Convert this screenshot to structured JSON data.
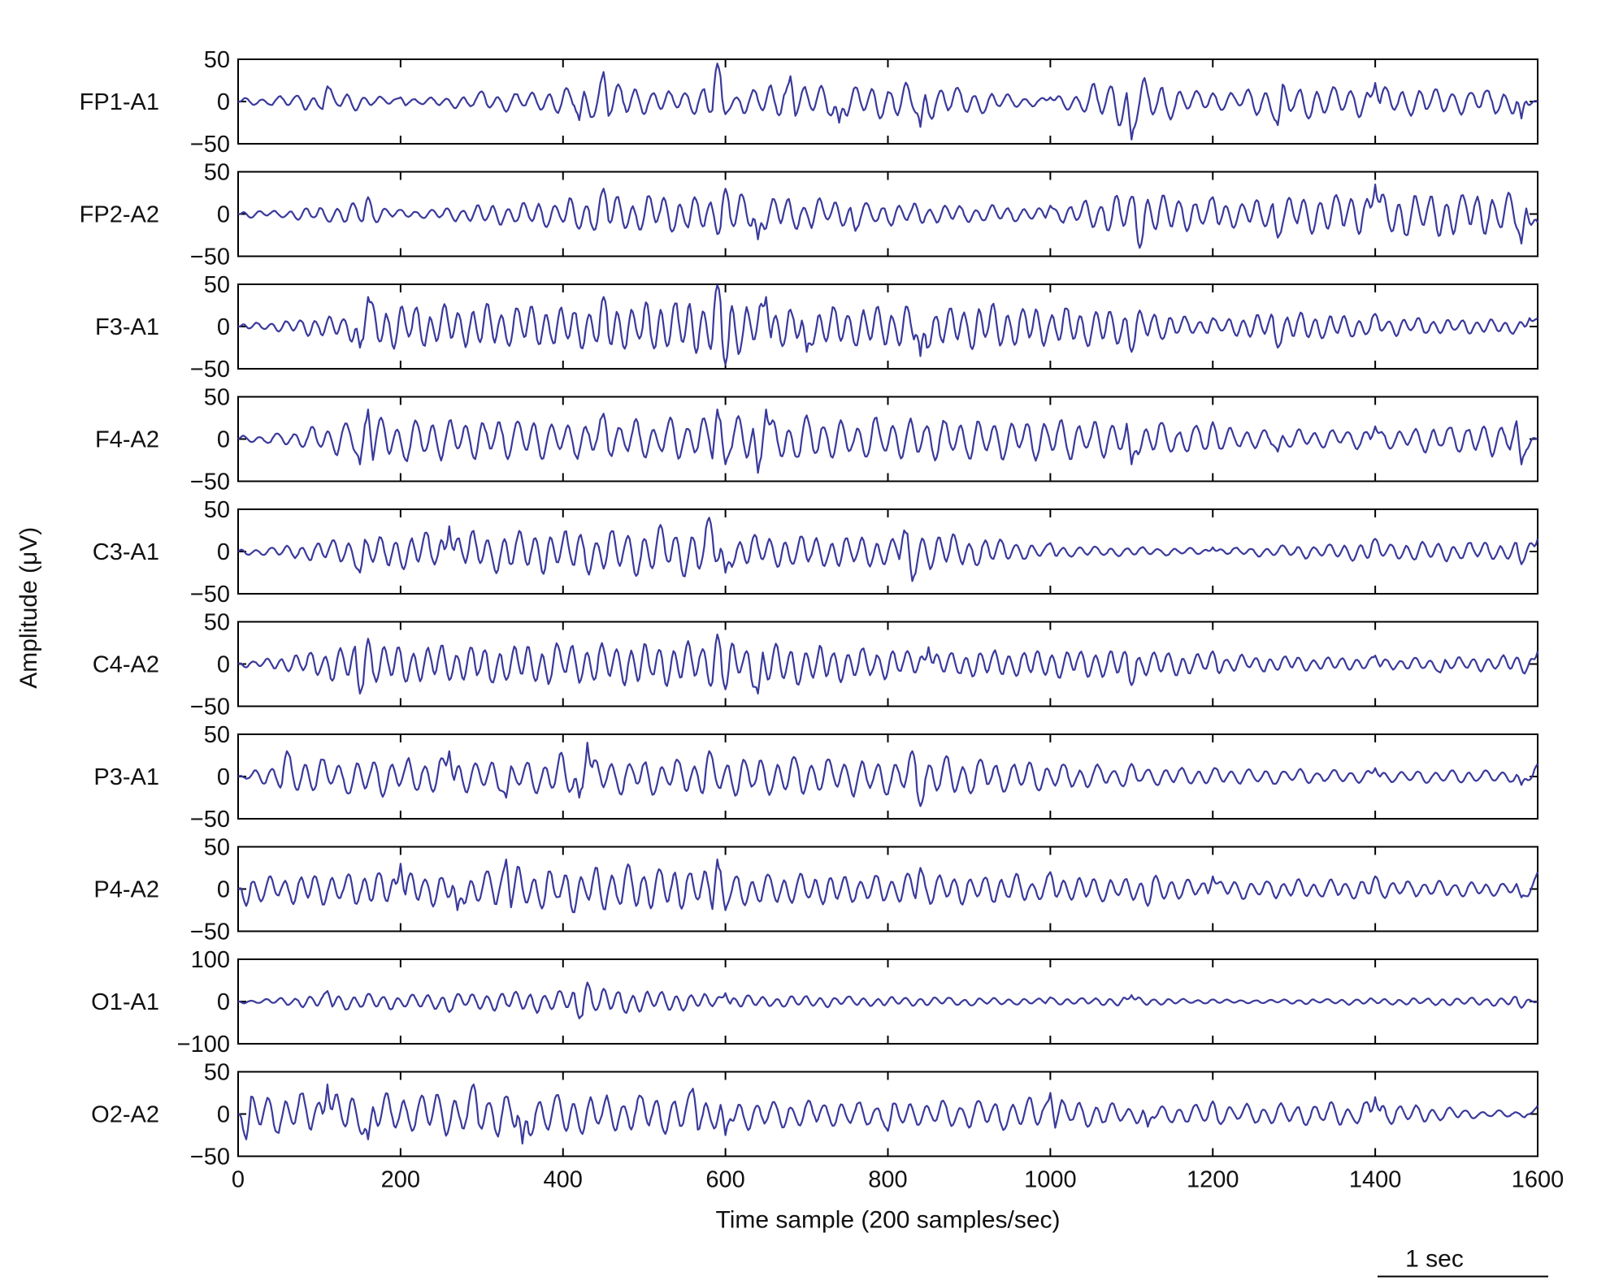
{
  "chart_data": {
    "type": "line",
    "xlabel": "Time sample (200 samples/sec)",
    "ylabel": "Amplitude (μV)",
    "xlim": [
      0,
      1600
    ],
    "x_ticks": [
      0,
      200,
      400,
      600,
      800,
      1000,
      1200,
      1400,
      1600
    ],
    "x_tick_labels": [
      "0",
      "200",
      "400",
      "600",
      "800",
      "1000",
      "1200",
      "1400",
      "1600"
    ],
    "scale_bar_label": "1 sec",
    "grid": false,
    "line_color": "#3a3a9c",
    "channels": [
      {
        "name": "FP1-A1",
        "ylim": [
          -50,
          50
        ],
        "ytick_labels": [
          "50",
          "0",
          "−50"
        ],
        "approx_features": [
          [
            0,
            0
          ],
          [
            110,
            18
          ],
          [
            200,
            5
          ],
          [
            300,
            12
          ],
          [
            420,
            -22
          ],
          [
            450,
            35
          ],
          [
            550,
            10
          ],
          [
            590,
            45
          ],
          [
            600,
            -15
          ],
          [
            680,
            30
          ],
          [
            740,
            -25
          ],
          [
            840,
            -30
          ],
          [
            1000,
            5
          ],
          [
            1100,
            -45
          ],
          [
            1200,
            10
          ],
          [
            1280,
            -28
          ],
          [
            1400,
            22
          ],
          [
            1580,
            -20
          ],
          [
            1600,
            0
          ]
        ]
      },
      {
        "name": "FP2-A2",
        "ylim": [
          -50,
          50
        ],
        "ytick_labels": [
          "50",
          "0",
          "−50"
        ],
        "approx_features": [
          [
            0,
            0
          ],
          [
            160,
            20
          ],
          [
            200,
            5
          ],
          [
            450,
            30
          ],
          [
            600,
            30
          ],
          [
            640,
            -30
          ],
          [
            760,
            -20
          ],
          [
            1000,
            10
          ],
          [
            1110,
            -40
          ],
          [
            1200,
            20
          ],
          [
            1280,
            -28
          ],
          [
            1400,
            35
          ],
          [
            1580,
            -35
          ],
          [
            1600,
            -10
          ]
        ]
      },
      {
        "name": "F3-A1",
        "ylim": [
          -50,
          50
        ],
        "ytick_labels": [
          "50",
          "0",
          "−50"
        ],
        "approx_features": [
          [
            0,
            0
          ],
          [
            150,
            -25
          ],
          [
            160,
            35
          ],
          [
            450,
            35
          ],
          [
            590,
            50
          ],
          [
            600,
            -45
          ],
          [
            650,
            35
          ],
          [
            700,
            -30
          ],
          [
            840,
            -35
          ],
          [
            1100,
            -30
          ],
          [
            1200,
            10
          ],
          [
            1280,
            -25
          ],
          [
            1400,
            15
          ],
          [
            1590,
            10
          ],
          [
            1600,
            10
          ]
        ]
      },
      {
        "name": "F4-A2",
        "ylim": [
          -50,
          50
        ],
        "ytick_labels": [
          "50",
          "0",
          "−50"
        ],
        "approx_features": [
          [
            0,
            0
          ],
          [
            150,
            -30
          ],
          [
            160,
            35
          ],
          [
            450,
            30
          ],
          [
            590,
            35
          ],
          [
            600,
            -30
          ],
          [
            640,
            -40
          ],
          [
            650,
            35
          ],
          [
            1100,
            -30
          ],
          [
            1200,
            20
          ],
          [
            1280,
            -15
          ],
          [
            1400,
            15
          ],
          [
            1580,
            -30
          ],
          [
            1600,
            0
          ]
        ]
      },
      {
        "name": "C3-A1",
        "ylim": [
          -50,
          50
        ],
        "ytick_labels": [
          "50",
          "0",
          "−50"
        ],
        "approx_features": [
          [
            0,
            0
          ],
          [
            150,
            -25
          ],
          [
            260,
            30
          ],
          [
            580,
            40
          ],
          [
            600,
            -25
          ],
          [
            820,
            25
          ],
          [
            830,
            -35
          ],
          [
            1000,
            10
          ],
          [
            1200,
            5
          ],
          [
            1400,
            15
          ],
          [
            1580,
            -15
          ],
          [
            1600,
            15
          ]
        ]
      },
      {
        "name": "C4-A2",
        "ylim": [
          -50,
          50
        ],
        "ytick_labels": [
          "50",
          "0",
          "−50"
        ],
        "approx_features": [
          [
            0,
            0
          ],
          [
            150,
            -35
          ],
          [
            160,
            30
          ],
          [
            590,
            35
          ],
          [
            600,
            -30
          ],
          [
            640,
            -35
          ],
          [
            850,
            20
          ],
          [
            1100,
            -25
          ],
          [
            1200,
            15
          ],
          [
            1400,
            10
          ],
          [
            1480,
            -10
          ],
          [
            1600,
            15
          ]
        ]
      },
      {
        "name": "P3-A1",
        "ylim": [
          -50,
          50
        ],
        "ytick_labels": [
          "50",
          "0",
          "−50"
        ],
        "approx_features": [
          [
            0,
            0
          ],
          [
            60,
            30
          ],
          [
            260,
            30
          ],
          [
            330,
            -25
          ],
          [
            430,
            40
          ],
          [
            420,
            -25
          ],
          [
            580,
            30
          ],
          [
            830,
            30
          ],
          [
            840,
            -35
          ],
          [
            1100,
            15
          ],
          [
            1400,
            10
          ],
          [
            1580,
            -10
          ],
          [
            1600,
            15
          ]
        ]
      },
      {
        "name": "P4-A2",
        "ylim": [
          -50,
          50
        ],
        "ytick_labels": [
          "50",
          "0",
          "−50"
        ],
        "approx_features": [
          [
            0,
            0
          ],
          [
            10,
            -20
          ],
          [
            200,
            30
          ],
          [
            270,
            -25
          ],
          [
            330,
            35
          ],
          [
            590,
            35
          ],
          [
            600,
            -25
          ],
          [
            840,
            25
          ],
          [
            1000,
            20
          ],
          [
            1120,
            -20
          ],
          [
            1200,
            15
          ],
          [
            1400,
            15
          ],
          [
            1580,
            -10
          ],
          [
            1600,
            20
          ]
        ]
      },
      {
        "name": "O1-A1",
        "ylim": [
          -100,
          100
        ],
        "ytick_labels": [
          "100",
          "0",
          "−100"
        ],
        "approx_features": [
          [
            0,
            0
          ],
          [
            110,
            25
          ],
          [
            260,
            -25
          ],
          [
            420,
            -40
          ],
          [
            430,
            45
          ],
          [
            600,
            20
          ],
          [
            1000,
            10
          ],
          [
            1100,
            15
          ],
          [
            1200,
            5
          ],
          [
            1580,
            -15
          ],
          [
            1600,
            0
          ]
        ]
      },
      {
        "name": "O2-A2",
        "ylim": [
          -50,
          50
        ],
        "ytick_labels": [
          "50",
          "0",
          "−50"
        ],
        "approx_features": [
          [
            0,
            0
          ],
          [
            10,
            -30
          ],
          [
            110,
            35
          ],
          [
            160,
            -30
          ],
          [
            290,
            35
          ],
          [
            350,
            -35
          ],
          [
            560,
            30
          ],
          [
            600,
            -25
          ],
          [
            800,
            -20
          ],
          [
            1000,
            25
          ],
          [
            1120,
            -15
          ],
          [
            1200,
            15
          ],
          [
            1400,
            20
          ],
          [
            1590,
            0
          ],
          [
            1600,
            10
          ]
        ]
      }
    ]
  }
}
